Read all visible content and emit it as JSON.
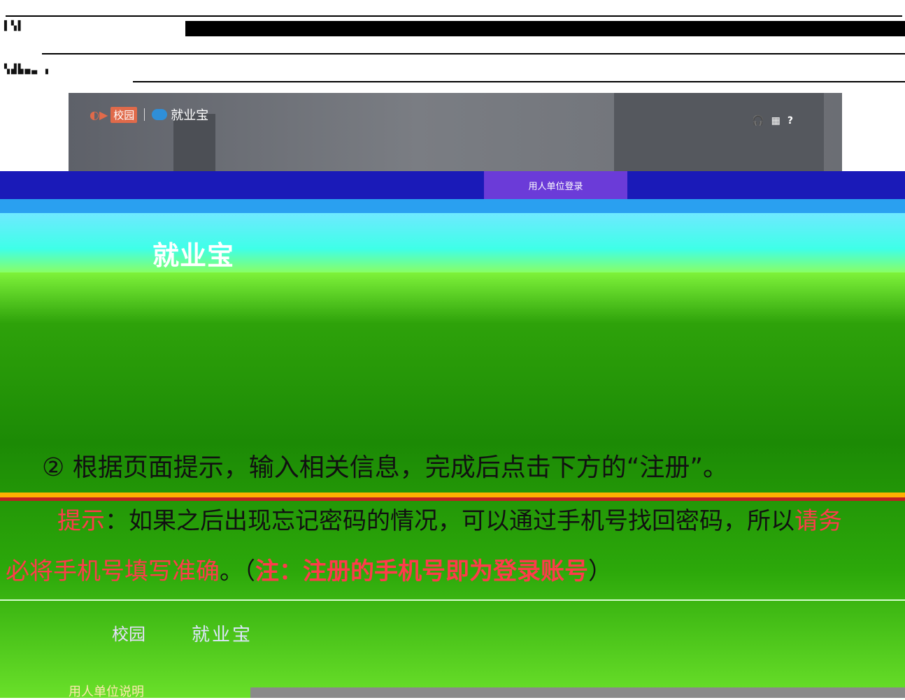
{
  "shot1": {
    "campus_box": "校园",
    "brand": "就业宝",
    "icons": [
      "headset-icon",
      "menu-icon",
      "help-icon"
    ],
    "icon_glyphs": [
      "🎧",
      "▦",
      "?"
    ]
  },
  "banner": {
    "login_tab": "用人单位登录",
    "big_logo": "就业宝"
  },
  "content": {
    "step": "② 根据页面提示，输入相关信息，完成后点击下方的“注册”。",
    "tip_label": "提示",
    "tip_text": "：如果之后出现忘记密码的情况，可以通过手机号找回密码，所以",
    "tip_red_tail": "请务",
    "tip2_red": "必将手机号填写准确",
    "tip2_mid": "。（",
    "tip2_note": "注：注册的手机号即为登录账号",
    "tip2_end": "）"
  },
  "shot2": {
    "campus": "校园",
    "brand": "就业宝",
    "unit": "用人单位说明"
  }
}
